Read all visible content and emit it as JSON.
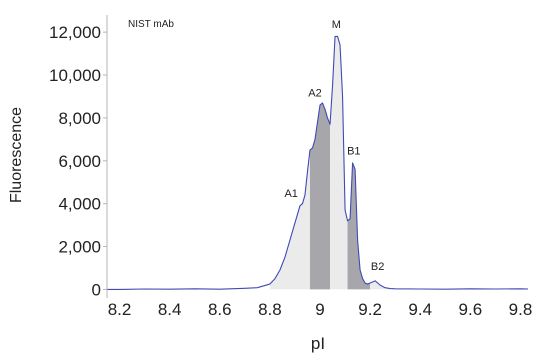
{
  "chart_data": {
    "type": "area",
    "title": "NIST mAb",
    "xlabel": "pI",
    "ylabel": "Fluorescence",
    "xlim": [
      8.15,
      9.83
    ],
    "ylim": [
      -400,
      12800
    ],
    "x_ticks": [
      {
        "value": 8.2,
        "label": "8.2"
      },
      {
        "value": 8.4,
        "label": "8.4"
      },
      {
        "value": 8.6,
        "label": "8.6"
      },
      {
        "value": 8.8,
        "label": "8.8"
      },
      {
        "value": 9.0,
        "label": "9"
      },
      {
        "value": 9.2,
        "label": "9.2"
      },
      {
        "value": 9.4,
        "label": "9.4"
      },
      {
        "value": 9.6,
        "label": "9.6"
      },
      {
        "value": 9.8,
        "label": "9.8"
      }
    ],
    "y_ticks": [
      {
        "value": 0,
        "label": "0"
      },
      {
        "value": 2000,
        "label": "2,000"
      },
      {
        "value": 4000,
        "label": "4,000"
      },
      {
        "value": 6000,
        "label": "6,000"
      },
      {
        "value": 8000,
        "label": "8,000"
      },
      {
        "value": 10000,
        "label": "10,000"
      },
      {
        "value": 12000,
        "label": "12,000"
      }
    ],
    "grid": false,
    "legend": "none",
    "series": [
      {
        "line_color": "#3f4ab5",
        "x": [
          8.15,
          8.2,
          8.3,
          8.4,
          8.5,
          8.6,
          8.7,
          8.75,
          8.8,
          8.82,
          8.84,
          8.86,
          8.88,
          8.9,
          8.92,
          8.93,
          8.94,
          8.95,
          8.96,
          8.97,
          8.98,
          8.99,
          9.0,
          9.01,
          9.02,
          9.03,
          9.04,
          9.05,
          9.06,
          9.07,
          9.08,
          9.09,
          9.1,
          9.11,
          9.12,
          9.13,
          9.14,
          9.15,
          9.16,
          9.17,
          9.18,
          9.19,
          9.2,
          9.22,
          9.24,
          9.26,
          9.28,
          9.3,
          9.4,
          9.5,
          9.6,
          9.7,
          9.8,
          9.83
        ],
        "y": [
          0,
          0,
          20,
          10,
          30,
          10,
          50,
          80,
          250,
          500,
          900,
          1500,
          2300,
          3100,
          3900,
          4000,
          4400,
          5500,
          6500,
          6600,
          7000,
          7800,
          8600,
          8700,
          8400,
          8000,
          7700,
          9500,
          11800,
          11800,
          11400,
          9000,
          3700,
          3200,
          3300,
          5900,
          5600,
          2300,
          900,
          500,
          300,
          250,
          300,
          400,
          200,
          80,
          40,
          30,
          20,
          10,
          30,
          20,
          30,
          20
        ]
      }
    ],
    "shaded_regions": [
      {
        "from": 8.8,
        "to": 8.96,
        "fill": "#ebebeb"
      },
      {
        "from": 8.96,
        "to": 9.04,
        "fill": "#a7a7ab"
      },
      {
        "from": 9.04,
        "to": 9.11,
        "fill": "#ebebeb"
      },
      {
        "from": 9.11,
        "to": 9.2,
        "fill": "#a7a7ab"
      },
      {
        "from": 9.2,
        "to": 9.28,
        "fill": "#ebebeb"
      }
    ],
    "annotations": [
      {
        "label": "A1",
        "x": 8.885,
        "y": 4300
      },
      {
        "label": "A2",
        "x": 8.98,
        "y": 9000
      },
      {
        "label": "M",
        "x": 9.065,
        "y": 12200
      },
      {
        "label": "B1",
        "x": 9.135,
        "y": 6300
      },
      {
        "label": "B2",
        "x": 9.23,
        "y": 900
      }
    ]
  }
}
